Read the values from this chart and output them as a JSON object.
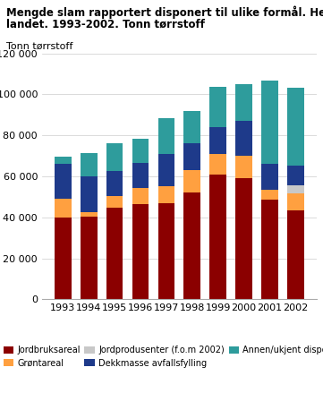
{
  "years": [
    "1993",
    "1994",
    "1995",
    "1996",
    "1997",
    "1998",
    "1999",
    "2000",
    "2001",
    "2002"
  ],
  "jordbruksareal": [
    40000,
    40500,
    44500,
    46500,
    47000,
    52000,
    61000,
    59000,
    48500,
    43500
  ],
  "grøntareal": [
    9000,
    2000,
    6000,
    8000,
    8000,
    11000,
    10000,
    11000,
    5000,
    8000
  ],
  "jordprodusenter": [
    0,
    0,
    0,
    0,
    0,
    0,
    0,
    0,
    0,
    4000
  ],
  "dekkmasse_avfallsfylling": [
    17000,
    17500,
    12000,
    12000,
    16000,
    13000,
    13000,
    17000,
    12500,
    9500
  ],
  "annen_ukjent": [
    3500,
    11500,
    13500,
    12000,
    17500,
    16000,
    19500,
    18000,
    40500,
    38000
  ],
  "colors": {
    "jordbruksareal": "#8B0000",
    "grøntareal": "#FFA040",
    "jordprodusenter": "#C8C8C8",
    "dekkmasse_avfallsfylling": "#1E3A8A",
    "annen_ukjent": "#2E9C9C"
  },
  "title_line1": "Mengde slam rapportert disponert til ulike formål. Hele",
  "title_line2": "landet. 1993-2002. Tonn tørrstoff",
  "ylabel": "Tonn tørrstoff",
  "ylim": [
    0,
    120000
  ],
  "yticks": [
    0,
    20000,
    40000,
    60000,
    80000,
    100000,
    120000
  ],
  "legend_labels": [
    "Jordbruksareal",
    "Grøntareal",
    "Jordprodusenter (f.o.m 2002)",
    "Dekkmasse avfallsfylling",
    "Annen/ukjent disponering"
  ]
}
